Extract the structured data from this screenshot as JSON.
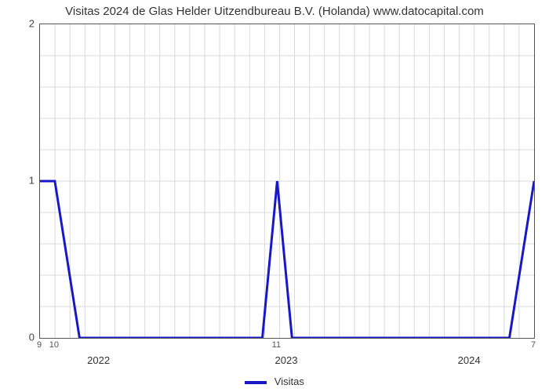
{
  "chart": {
    "type": "line",
    "title": "Visitas 2024 de Glas Helder Uitzendbureau B.V. (Holanda) www.datocapital.com",
    "title_fontsize": 15,
    "background_color": "#ffffff",
    "plot_border_color": "#555555",
    "grid_color": "#d9d9d9",
    "series": {
      "name": "Visitas",
      "color": "#1818c8",
      "line_width": 3,
      "points": [
        {
          "x": 0.0,
          "y": 1.0
        },
        {
          "x": 0.03,
          "y": 1.0
        },
        {
          "x": 0.08,
          "y": 0.0
        },
        {
          "x": 0.45,
          "y": 0.0
        },
        {
          "x": 0.48,
          "y": 1.0
        },
        {
          "x": 0.51,
          "y": 0.0
        },
        {
          "x": 0.95,
          "y": 0.0
        },
        {
          "x": 1.0,
          "y": 1.0
        }
      ]
    },
    "y_axis": {
      "lim": [
        0,
        2
      ],
      "ticks": [
        0,
        1,
        2
      ],
      "minor_divisions": 5,
      "label_fontsize": 13
    },
    "x_axis": {
      "year_labels": [
        {
          "pos": 0.12,
          "label": "2022"
        },
        {
          "pos": 0.5,
          "label": "2023"
        },
        {
          "pos": 0.87,
          "label": "2024"
        }
      ],
      "edge_labels": [
        {
          "pos": 0.0,
          "label": "9"
        },
        {
          "pos": 0.03,
          "label": "10"
        },
        {
          "pos": 0.48,
          "label": "11"
        },
        {
          "pos": 1.0,
          "label": "7"
        }
      ],
      "minor_tick_count": 33
    },
    "legend": {
      "label": "Visitas",
      "swatch_color": "#1818c8"
    }
  }
}
